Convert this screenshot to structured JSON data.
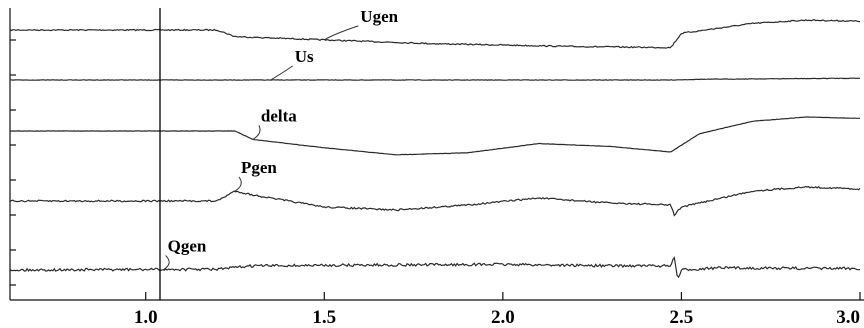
{
  "chart_data": {
    "type": "line",
    "title": "",
    "xlabel": "",
    "ylabel": "",
    "xlim": [
      0.62,
      3.0
    ],
    "x_ticks": [
      {
        "value": 1.0,
        "label": "1.0"
      },
      {
        "value": 1.5,
        "label": "1.5"
      },
      {
        "value": 2.0,
        "label": "2.0"
      },
      {
        "value": 2.5,
        "label": "2.5"
      },
      {
        "value": 3.0,
        "label": "3.0"
      }
    ],
    "cursor_x": 1.04,
    "grid": false,
    "legend": "inline labels",
    "series": [
      {
        "name": "Ugen",
        "label_at": 1.5,
        "values": [
          [
            0.62,
            0
          ],
          [
            1.2,
            0
          ],
          [
            1.25,
            -0.3
          ],
          [
            1.5,
            -0.45
          ],
          [
            1.8,
            -0.62
          ],
          [
            2.2,
            -0.75
          ],
          [
            2.47,
            -0.8
          ],
          [
            2.5,
            -0.15
          ],
          [
            2.7,
            0.3
          ],
          [
            2.85,
            0.45
          ],
          [
            3.0,
            0.4
          ]
        ]
      },
      {
        "name": "Us",
        "label_at": 1.35,
        "values": [
          [
            0.62,
            0
          ],
          [
            2.47,
            0
          ],
          [
            2.55,
            0.04
          ],
          [
            3.0,
            0.1
          ]
        ]
      },
      {
        "name": "delta",
        "label_at": 1.3,
        "values": [
          [
            0.62,
            0
          ],
          [
            1.25,
            0
          ],
          [
            1.3,
            -0.3
          ],
          [
            1.5,
            -0.6
          ],
          [
            1.7,
            -0.85
          ],
          [
            1.9,
            -0.78
          ],
          [
            2.1,
            -0.45
          ],
          [
            2.3,
            -0.55
          ],
          [
            2.47,
            -0.75
          ],
          [
            2.55,
            -0.1
          ],
          [
            2.7,
            0.35
          ],
          [
            2.85,
            0.5
          ],
          [
            3.0,
            0.45
          ]
        ]
      },
      {
        "name": "Pgen",
        "label_at": 1.25,
        "values": [
          [
            0.62,
            0
          ],
          [
            1.2,
            0
          ],
          [
            1.25,
            0.5
          ],
          [
            1.3,
            0.3
          ],
          [
            1.5,
            -0.3
          ],
          [
            1.7,
            -0.45
          ],
          [
            1.9,
            -0.2
          ],
          [
            2.1,
            0.15
          ],
          [
            2.3,
            -0.1
          ],
          [
            2.47,
            -0.2
          ],
          [
            2.48,
            -0.7
          ],
          [
            2.5,
            -0.3
          ],
          [
            2.7,
            0.5
          ],
          [
            2.85,
            0.7
          ],
          [
            3.0,
            0.6
          ]
        ]
      },
      {
        "name": "Qgen",
        "label_at": 1.05,
        "values": [
          [
            0.62,
            0
          ],
          [
            1.2,
            0.05
          ],
          [
            1.3,
            0.3
          ],
          [
            1.6,
            0.35
          ],
          [
            2.0,
            0.4
          ],
          [
            2.3,
            0.3
          ],
          [
            2.47,
            0.3
          ],
          [
            2.48,
            0.9
          ],
          [
            2.49,
            -0.7
          ],
          [
            2.5,
            0.0
          ],
          [
            2.6,
            0.15
          ],
          [
            3.0,
            0.1
          ]
        ]
      }
    ]
  }
}
